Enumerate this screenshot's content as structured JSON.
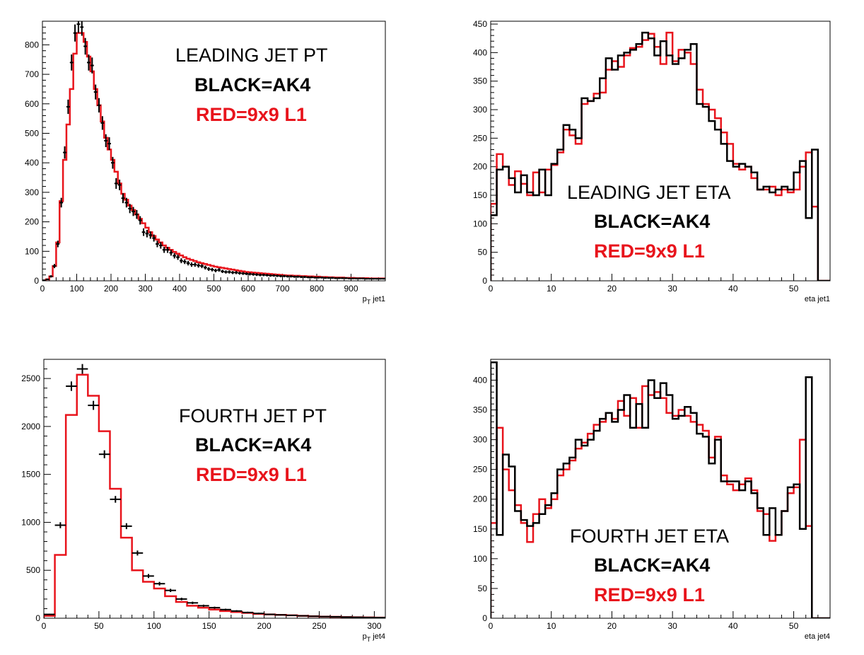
{
  "chart_data": [
    {
      "type": "histogram",
      "annotation": [
        "LEADING JET PT",
        "BLACK=AK4",
        "RED=9x9 L1"
      ],
      "xlabel_main": "p",
      "xlabel_sub": "T",
      "xlabel_suffix": " jet1",
      "xlim": [
        0,
        1000
      ],
      "ylim": [
        0,
        880
      ],
      "xticks": [
        0,
        100,
        200,
        300,
        400,
        500,
        600,
        700,
        800,
        900
      ],
      "yticks": [
        0,
        100,
        200,
        300,
        400,
        500,
        600,
        700,
        800
      ],
      "bin_width": 10,
      "red_values": [
        0,
        5,
        15,
        50,
        130,
        270,
        410,
        530,
        650,
        770,
        840,
        840,
        810,
        760,
        710,
        650,
        595,
        540,
        485,
        445,
        410,
        370,
        330,
        295,
        275,
        255,
        240,
        225,
        210,
        195,
        180,
        165,
        152,
        140,
        130,
        120,
        112,
        105,
        98,
        92,
        86,
        80,
        75,
        71,
        67,
        63,
        60,
        57,
        54,
        51,
        48,
        46,
        44,
        42,
        40,
        38,
        36,
        34,
        32,
        30,
        29,
        28,
        27,
        26,
        25,
        24,
        23,
        22,
        21,
        20,
        19,
        18,
        18,
        17,
        17,
        16,
        16,
        15,
        15,
        14,
        14,
        13,
        13,
        12,
        12,
        11,
        11,
        11,
        10,
        10,
        10,
        9,
        9,
        9,
        9,
        8,
        8,
        8,
        8,
        8
      ],
      "black_points": [
        [
          5,
          2
        ],
        [
          15,
          5
        ],
        [
          25,
          15
        ],
        [
          35,
          50
        ],
        [
          45,
          125
        ],
        [
          55,
          265
        ],
        [
          65,
          435
        ],
        [
          75,
          590
        ],
        [
          85,
          740
        ],
        [
          95,
          840
        ],
        [
          105,
          870
        ],
        [
          115,
          860
        ],
        [
          125,
          795
        ],
        [
          135,
          740
        ],
        [
          145,
          730
        ],
        [
          155,
          640
        ],
        [
          165,
          595
        ],
        [
          175,
          535
        ],
        [
          185,
          475
        ],
        [
          195,
          465
        ],
        [
          205,
          400
        ],
        [
          215,
          330
        ],
        [
          225,
          325
        ],
        [
          235,
          280
        ],
        [
          245,
          265
        ],
        [
          255,
          245
        ],
        [
          265,
          235
        ],
        [
          275,
          225
        ],
        [
          285,
          205
        ],
        [
          295,
          165
        ],
        [
          305,
          160
        ],
        [
          315,
          155
        ],
        [
          325,
          145
        ],
        [
          335,
          125
        ],
        [
          345,
          120
        ],
        [
          355,
          105
        ],
        [
          365,
          105
        ],
        [
          375,
          95
        ],
        [
          385,
          85
        ],
        [
          395,
          80
        ],
        [
          405,
          68
        ],
        [
          415,
          65
        ],
        [
          425,
          60
        ],
        [
          435,
          55
        ],
        [
          445,
          55
        ],
        [
          455,
          52
        ],
        [
          465,
          50
        ],
        [
          475,
          45
        ],
        [
          485,
          40
        ],
        [
          495,
          38
        ],
        [
          505,
          35
        ],
        [
          515,
          37
        ],
        [
          525,
          32
        ],
        [
          535,
          30
        ],
        [
          545,
          30
        ],
        [
          555,
          28
        ],
        [
          565,
          28
        ],
        [
          575,
          26
        ],
        [
          585,
          25
        ],
        [
          595,
          24
        ],
        [
          605,
          23
        ],
        [
          615,
          22
        ],
        [
          625,
          21
        ],
        [
          635,
          20
        ],
        [
          645,
          20
        ],
        [
          655,
          19
        ],
        [
          665,
          18
        ],
        [
          675,
          18
        ],
        [
          685,
          17
        ],
        [
          695,
          16
        ],
        [
          705,
          16
        ],
        [
          715,
          15
        ],
        [
          725,
          15
        ],
        [
          735,
          14
        ],
        [
          745,
          14
        ],
        [
          755,
          13
        ],
        [
          765,
          13
        ],
        [
          775,
          12
        ],
        [
          785,
          12
        ],
        [
          795,
          11
        ],
        [
          805,
          11
        ],
        [
          815,
          11
        ],
        [
          825,
          10
        ],
        [
          835,
          10
        ],
        [
          845,
          10
        ],
        [
          855,
          9
        ],
        [
          865,
          9
        ],
        [
          875,
          9
        ],
        [
          885,
          9
        ],
        [
          895,
          8
        ],
        [
          905,
          8
        ],
        [
          915,
          8
        ],
        [
          925,
          8
        ],
        [
          935,
          8
        ],
        [
          945,
          7
        ],
        [
          955,
          7
        ],
        [
          965,
          7
        ],
        [
          975,
          7
        ],
        [
          985,
          7
        ],
        [
          995,
          7
        ]
      ]
    },
    {
      "type": "histogram",
      "annotation": [
        "LEADING JET ETA",
        "BLACK=AK4",
        "RED=9x9 L1"
      ],
      "xlabel_main": "eta jet1",
      "xlabel_sub": "",
      "xlabel_suffix": "",
      "xlim": [
        0,
        56
      ],
      "ylim": [
        0,
        455
      ],
      "xticks": [
        0,
        10,
        20,
        30,
        40,
        50
      ],
      "yticks": [
        0,
        50,
        100,
        150,
        200,
        250,
        300,
        350,
        400,
        450
      ],
      "bin_width": 1,
      "red_values": [
        135,
        222,
        200,
        168,
        192,
        170,
        150,
        190,
        155,
        195,
        203,
        225,
        265,
        255,
        240,
        310,
        315,
        328,
        330,
        370,
        385,
        375,
        395,
        408,
        410,
        422,
        433,
        410,
        380,
        435,
        385,
        405,
        400,
        380,
        335,
        310,
        300,
        285,
        260,
        240,
        205,
        195,
        200,
        180,
        160,
        160,
        165,
        150,
        160,
        155,
        160,
        200,
        225,
        130,
        0,
        0
      ],
      "black_values": [
        115,
        195,
        200,
        180,
        155,
        185,
        155,
        150,
        195,
        150,
        205,
        230,
        273,
        265,
        250,
        320,
        315,
        320,
        355,
        390,
        370,
        395,
        400,
        405,
        415,
        435,
        425,
        395,
        420,
        395,
        380,
        390,
        405,
        415,
        310,
        305,
        280,
        265,
        240,
        210,
        200,
        205,
        200,
        190,
        160,
        165,
        155,
        160,
        165,
        160,
        190,
        210,
        110,
        230,
        0,
        0
      ]
    },
    {
      "type": "histogram",
      "annotation": [
        "FOURTH JET PT",
        "BLACK=AK4",
        "RED=9x9 L1"
      ],
      "xlabel_main": "p",
      "xlabel_sub": "T",
      "xlabel_suffix": " jet4",
      "xlim": [
        0,
        310
      ],
      "ylim": [
        0,
        2700
      ],
      "xticks": [
        0,
        50,
        100,
        150,
        200,
        250,
        300
      ],
      "yticks": [
        0,
        500,
        1000,
        1500,
        2000,
        2500
      ],
      "bin_width": 10,
      "red_values": [
        25,
        660,
        2120,
        2540,
        2320,
        1950,
        1350,
        840,
        500,
        380,
        310,
        230,
        170,
        130,
        110,
        90,
        75,
        65,
        55,
        45,
        40,
        35,
        30,
        25,
        20,
        17,
        15,
        12,
        10,
        8,
        6
      ],
      "black_points": [
        [
          5,
          40
        ],
        [
          15,
          970
        ],
        [
          25,
          2420
        ],
        [
          35,
          2600
        ],
        [
          45,
          2220
        ],
        [
          55,
          1710
        ],
        [
          65,
          1240
        ],
        [
          75,
          960
        ],
        [
          85,
          680
        ],
        [
          95,
          440
        ],
        [
          105,
          360
        ],
        [
          115,
          290
        ],
        [
          125,
          200
        ],
        [
          135,
          160
        ],
        [
          145,
          130
        ],
        [
          155,
          110
        ],
        [
          165,
          90
        ],
        [
          175,
          75
        ],
        [
          185,
          60
        ],
        [
          195,
          50
        ],
        [
          205,
          40
        ],
        [
          215,
          35
        ],
        [
          225,
          30
        ],
        [
          235,
          25
        ],
        [
          245,
          20
        ],
        [
          255,
          17
        ],
        [
          265,
          15
        ],
        [
          275,
          12
        ],
        [
          285,
          10
        ],
        [
          295,
          8
        ],
        [
          305,
          6
        ]
      ]
    },
    {
      "type": "histogram",
      "annotation": [
        "FOURTH JET ETA",
        "BLACK=AK4",
        "RED=9x9 L1"
      ],
      "xlabel_main": "eta jet4",
      "xlabel_sub": "",
      "xlabel_suffix": "",
      "xlim": [
        0,
        56
      ],
      "ylim": [
        0,
        435
      ],
      "xticks": [
        0,
        10,
        20,
        30,
        40,
        50
      ],
      "yticks": [
        0,
        50,
        100,
        150,
        200,
        250,
        300,
        350,
        400
      ],
      "bin_width": 1,
      "red_values": [
        160,
        320,
        250,
        215,
        190,
        160,
        128,
        175,
        200,
        185,
        200,
        240,
        250,
        265,
        285,
        295,
        310,
        325,
        330,
        345,
        335,
        365,
        340,
        370,
        320,
        390,
        375,
        380,
        370,
        345,
        340,
        350,
        340,
        330,
        325,
        315,
        270,
        305,
        240,
        225,
        215,
        225,
        235,
        215,
        180,
        175,
        130,
        140,
        180,
        210,
        220,
        300,
        155,
        0,
        0,
        0
      ],
      "black_values": [
        430,
        140,
        275,
        255,
        180,
        165,
        155,
        160,
        175,
        190,
        210,
        250,
        260,
        270,
        300,
        290,
        300,
        315,
        335,
        345,
        330,
        350,
        375,
        320,
        360,
        320,
        400,
        370,
        395,
        375,
        335,
        340,
        355,
        345,
        310,
        305,
        260,
        300,
        230,
        230,
        230,
        215,
        230,
        210,
        185,
        140,
        185,
        140,
        180,
        220,
        225,
        150,
        405,
        0,
        0,
        0
      ]
    }
  ]
}
